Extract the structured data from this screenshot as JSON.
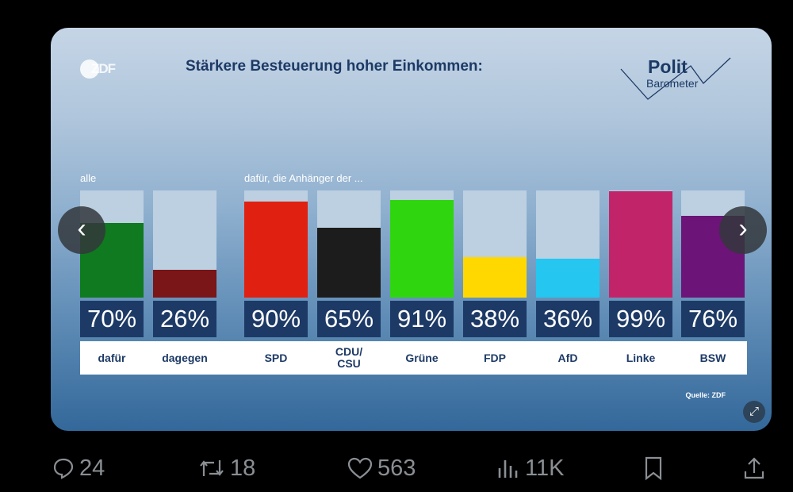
{
  "card": {
    "title": "Stärkere Besteuerung hoher Einkommen:",
    "zdf_logo": "ZDF",
    "brand_logo": {
      "line1": "Polit",
      "line2": "Barometer"
    },
    "section_all": "alle",
    "section_supporters": "dafür, die Anhänger der ...",
    "source": "Quelle: ZDF"
  },
  "chart_data": {
    "type": "bar",
    "title": "Stärkere Besteuerung hoher Einkommen:",
    "ylim": [
      0,
      100
    ],
    "unit": "%",
    "categories": [
      "dafür",
      "dagegen",
      "SPD",
      "CDU/CSU",
      "Grüne",
      "FDP",
      "AfD",
      "Linke",
      "BSW"
    ],
    "values": [
      70,
      26,
      90,
      65,
      91,
      38,
      36,
      99,
      76
    ],
    "value_labels": [
      "70%",
      "26%",
      "90%",
      "65%",
      "91%",
      "38%",
      "36%",
      "99%",
      "76%"
    ],
    "colors": [
      "#0f7a1f",
      "#7a1518",
      "#e02010",
      "#1c1c1c",
      "#2fd60f",
      "#ffd800",
      "#25c6f0",
      "#c2246a",
      "#6c1477"
    ]
  },
  "actions": {
    "replies": "24",
    "reposts": "18",
    "likes": "563",
    "views": "11K"
  },
  "icons": [
    "previous-chevron-icon",
    "next-chevron-icon",
    "expand-icon",
    "reply-icon",
    "repost-icon",
    "like-icon",
    "views-icon",
    "bookmark-icon",
    "share-icon"
  ]
}
